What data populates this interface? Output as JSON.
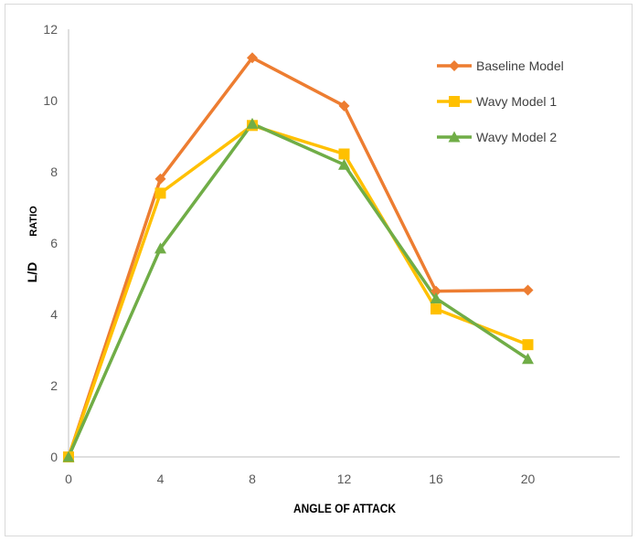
{
  "chart_data": {
    "type": "line",
    "title": "",
    "xlabel": "ANGLE OF ATTACK",
    "ylabel_parts": [
      "L/D",
      "RATIO"
    ],
    "x": [
      0,
      4,
      8,
      12,
      16,
      20
    ],
    "x_ticks": [
      "0",
      "4",
      "8",
      "12",
      "16",
      "20"
    ],
    "y_ticks": [
      "0",
      "2",
      "4",
      "6",
      "8",
      "10",
      "12"
    ],
    "xlim": [
      0,
      24
    ],
    "ylim": [
      0,
      12
    ],
    "grid": false,
    "legend_position": "top-right",
    "series": [
      {
        "name": "Baseline Model",
        "color": "#ED7D31",
        "marker": "diamond",
        "values": [
          0,
          7.8,
          11.2,
          9.85,
          4.65,
          4.68
        ]
      },
      {
        "name": "Wavy Model 1",
        "color": "#FFC000",
        "marker": "square",
        "values": [
          0,
          7.4,
          9.3,
          8.5,
          4.15,
          3.15
        ]
      },
      {
        "name": "Wavy Model 2",
        "color": "#70AD47",
        "marker": "triangle",
        "values": [
          0,
          5.85,
          9.35,
          8.2,
          4.45,
          2.75
        ]
      }
    ]
  }
}
